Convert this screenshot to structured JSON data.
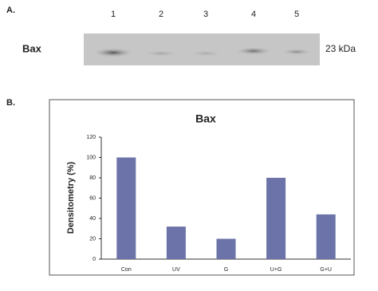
{
  "panel_a": {
    "label": "A.",
    "protein": "Bax",
    "size": "23 kDa",
    "lanes": [
      "1",
      "2",
      "3",
      "4",
      "5"
    ]
  },
  "panel_b": {
    "label": "B."
  },
  "chart_data": {
    "type": "bar",
    "title": "Bax",
    "y_label": "Densitometry (%)",
    "categories": [
      "Con",
      "UV",
      "G",
      "U+G",
      "G+U"
    ],
    "values": [
      100,
      32,
      20,
      80,
      44
    ],
    "color": "#6b73a8",
    "ylim": [
      0,
      120
    ],
    "yticks": [
      0,
      20,
      40,
      60,
      80,
      100,
      120
    ],
    "grid": false
  }
}
